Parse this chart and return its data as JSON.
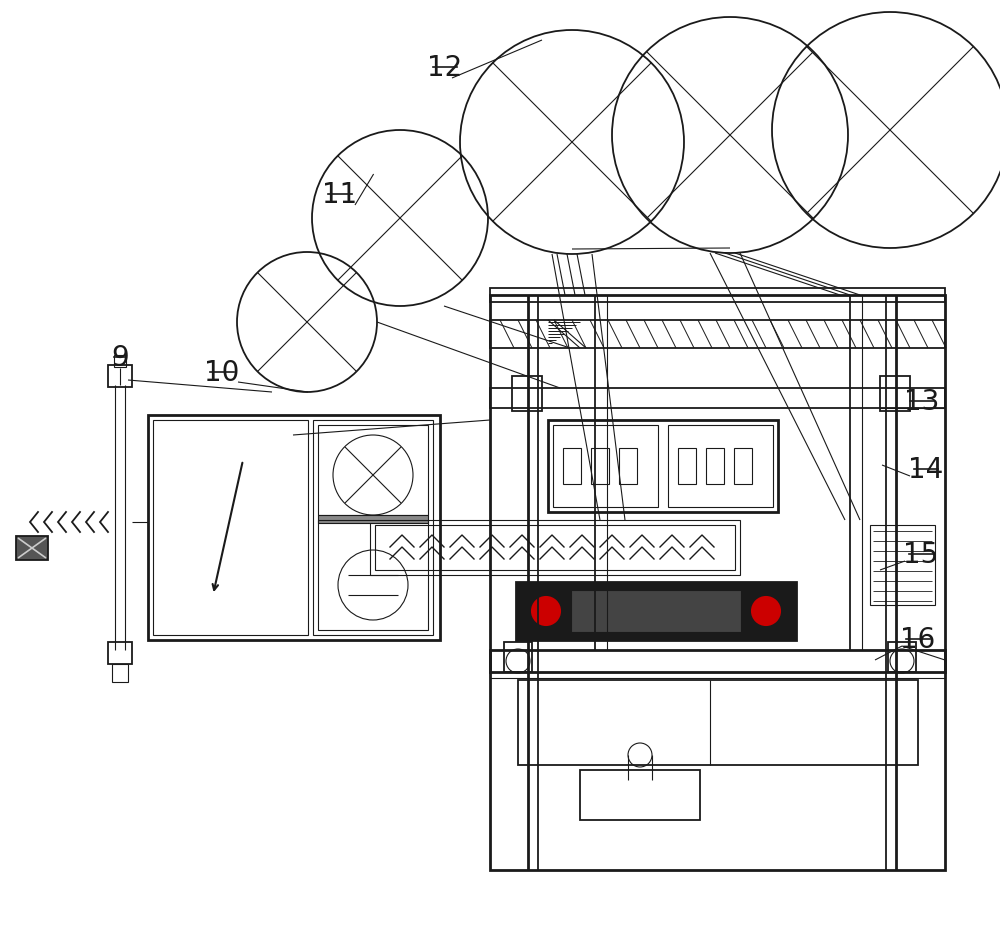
{
  "bg_color": "#ffffff",
  "line_color": "#1a1a1a",
  "label_color": "#1a1a1a",
  "label_fontsize": 20,
  "figsize": [
    10.0,
    9.27
  ]
}
